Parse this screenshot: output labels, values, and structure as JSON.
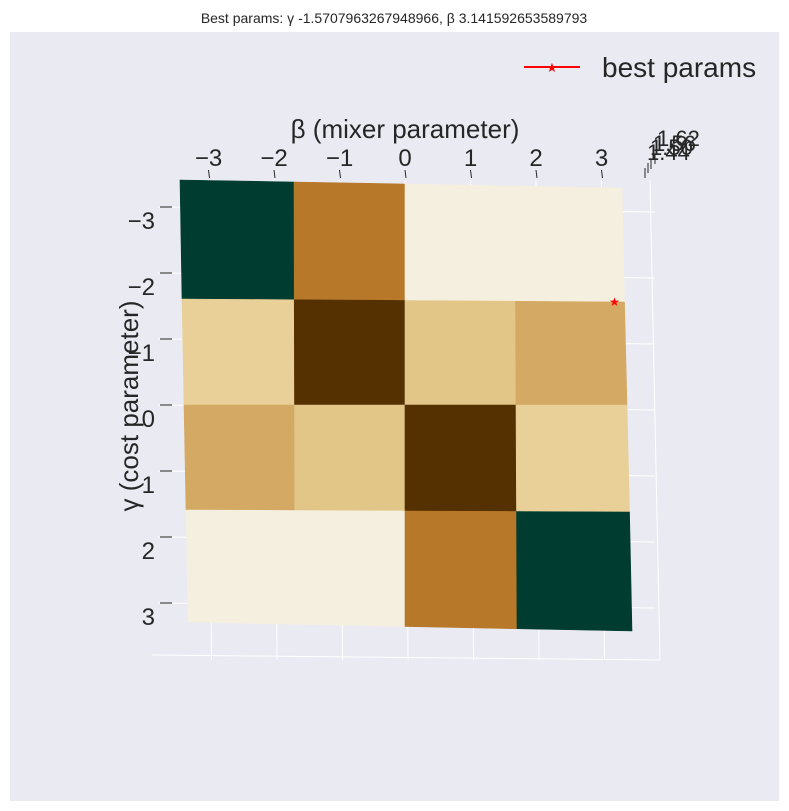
{
  "chart_data": {
    "type": "heatmap",
    "title_text": "Best params: γ -1.5707963267948966, β 3.141592653589793",
    "xlabel": "β (mixer parameter)",
    "ylabel": "γ (cost parameter)",
    "x": [
      -3.141592653589793,
      -1.5707963267948966,
      0,
      1.5707963267948966,
      3.141592653589793
    ],
    "y": [
      -3.141592653589793,
      -1.5707963267948966,
      0,
      1.5707963267948966,
      3.141592653589793
    ],
    "x_ticks": [
      "−3",
      "−2",
      "−1",
      "0",
      "1",
      "2",
      "3"
    ],
    "x_tick_values": [
      -3,
      -2,
      -1,
      0,
      1,
      2,
      3
    ],
    "y_ticks": [
      "−3",
      "−2",
      "−1",
      "0",
      "1",
      "2",
      "3"
    ],
    "y_tick_values": [
      -3,
      -2,
      -1,
      0,
      1,
      2,
      3
    ],
    "z_ticks": [
      "1.44",
      "1.50",
      "1.56",
      "1.62"
    ],
    "cells": [
      [
        3,
        1,
        0,
        0
      ],
      [
        0.5,
        4,
        0.6,
        0.3
      ],
      [
        0.3,
        0.6,
        4,
        0.5
      ],
      [
        0,
        0,
        1,
        3
      ]
    ],
    "colormap": [
      "#f5efe0",
      "#b7782a",
      "#d4a963",
      "#e1c687",
      "#553000",
      "#003c30"
    ],
    "cell_colors": [
      [
        "#003c30",
        "#b7782a",
        "#f5efe0",
        "#f5efe0"
      ],
      [
        "#e8d098",
        "#553000",
        "#e1c687",
        "#d4a963"
      ],
      [
        "#d4a963",
        "#e1c687",
        "#553000",
        "#e8d098"
      ],
      [
        "#f5efe0",
        "#f5efe0",
        "#b7782a",
        "#003c30"
      ]
    ],
    "best_point": {
      "beta": 3.141592653589793,
      "gamma": -1.5707963267948966
    },
    "best_marker_color": "#ff0000",
    "legend": {
      "label": "best params",
      "placement": "top-right"
    },
    "background_color": "#eaeaf2",
    "grid": true
  }
}
